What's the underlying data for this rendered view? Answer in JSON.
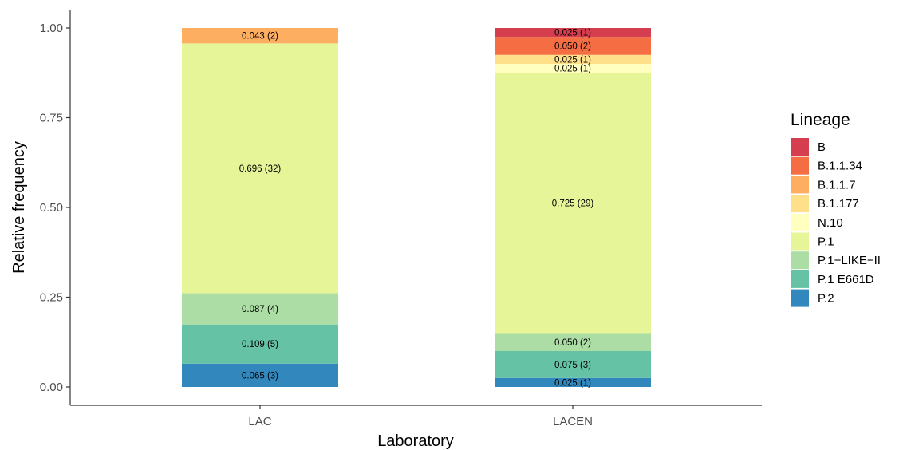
{
  "chart_data": {
    "type": "bar",
    "stacked": true,
    "xlabel": "Laboratory",
    "ylabel": "Relative frequency",
    "ylim": [
      0,
      1
    ],
    "yticks": [
      "0.00",
      "0.25",
      "0.50",
      "0.75",
      "1.00"
    ],
    "grid": false,
    "legend_title": "Lineage",
    "legend_position": "right",
    "categories": [
      "LAC",
      "LACEN"
    ],
    "lineages": [
      {
        "name": "B",
        "color": "#d53e4f"
      },
      {
        "name": "B.1.1.34",
        "color": "#f46d43"
      },
      {
        "name": "B.1.1.7",
        "color": "#fdae61"
      },
      {
        "name": "B.1.177",
        "color": "#fee08b"
      },
      {
        "name": "N.10",
        "color": "#ffffbf"
      },
      {
        "name": "P.1",
        "color": "#e6f598"
      },
      {
        "name": "P.1−LIKE−II",
        "color": "#abdda4"
      },
      {
        "name": "P.1 E661D",
        "color": "#66c2a5"
      },
      {
        "name": "P.2",
        "color": "#3288bd"
      }
    ],
    "bars": [
      {
        "category": "LAC",
        "segments": [
          {
            "lineage": "P.2",
            "value": 0.065,
            "label": "0.065 (3)"
          },
          {
            "lineage": "P.1 E661D",
            "value": 0.109,
            "label": "0.109 (5)"
          },
          {
            "lineage": "P.1−LIKE−II",
            "value": 0.087,
            "label": "0.087 (4)"
          },
          {
            "lineage": "P.1",
            "value": 0.696,
            "label": "0.696 (32)"
          },
          {
            "lineage": "B.1.1.7",
            "value": 0.043,
            "label": "0.043 (2)"
          }
        ]
      },
      {
        "category": "LACEN",
        "segments": [
          {
            "lineage": "P.2",
            "value": 0.025,
            "label": "0.025 (1)"
          },
          {
            "lineage": "P.1 E661D",
            "value": 0.075,
            "label": "0.075 (3)"
          },
          {
            "lineage": "P.1−LIKE−II",
            "value": 0.05,
            "label": "0.050 (2)"
          },
          {
            "lineage": "P.1",
            "value": 0.725,
            "label": "0.725 (29)"
          },
          {
            "lineage": "N.10",
            "value": 0.025,
            "label": "0.025 (1)"
          },
          {
            "lineage": "B.1.177",
            "value": 0.025,
            "label": "0.025 (1)"
          },
          {
            "lineage": "B.1.1.34",
            "value": 0.05,
            "label": "0.050 (2)"
          },
          {
            "lineage": "B",
            "value": 0.025,
            "label": "0.025 (1)"
          }
        ]
      }
    ]
  }
}
